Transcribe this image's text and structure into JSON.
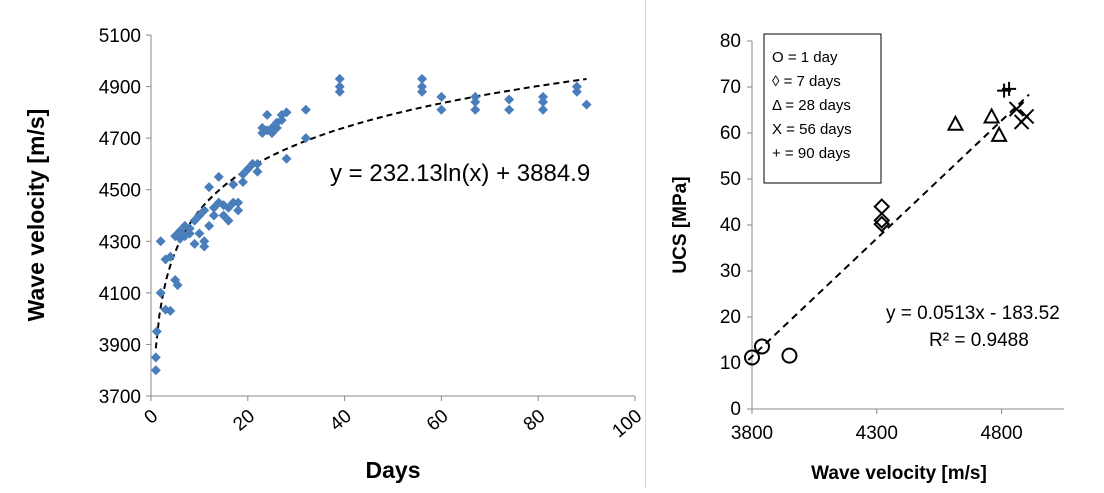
{
  "chart_data": [
    {
      "type": "scatter",
      "xlabel": "Days",
      "ylabel": "Wave velocity [m/s]",
      "xlim": [
        0,
        100
      ],
      "ylim": [
        3700,
        5100
      ],
      "xticks": [
        "0",
        "20",
        "40",
        "60",
        "80",
        "100"
      ],
      "yticks": [
        "3700",
        "3900",
        "4100",
        "4300",
        "4500",
        "4700",
        "4900",
        "5100"
      ],
      "grid": false,
      "marker": "diamond",
      "marker_color": "#4a7ebb",
      "series": [
        {
          "points": [
            [
              1,
              3800
            ],
            [
              1,
              3850
            ],
            [
              1.2,
              3950
            ],
            [
              2,
              4100
            ],
            [
              2,
              4300
            ],
            [
              3,
              4230
            ],
            [
              3,
              4035
            ],
            [
              4,
              4030
            ],
            [
              4,
              4240
            ],
            [
              5,
              4150
            ],
            [
              5,
              4320
            ],
            [
              5.5,
              4130
            ],
            [
              6,
              4310
            ],
            [
              6,
              4340
            ],
            [
              7,
              4360
            ],
            [
              7,
              4320
            ],
            [
              8,
              4330
            ],
            [
              8,
              4350
            ],
            [
              9,
              4380
            ],
            [
              9,
              4290
            ],
            [
              10,
              4400
            ],
            [
              10,
              4330
            ],
            [
              11,
              4300
            ],
            [
              11,
              4280
            ],
            [
              11,
              4420
            ],
            [
              12,
              4360
            ],
            [
              12,
              4510
            ],
            [
              13,
              4400
            ],
            [
              13,
              4430
            ],
            [
              14,
              4450
            ],
            [
              14,
              4550
            ],
            [
              15,
              4400
            ],
            [
              15,
              4440
            ],
            [
              16,
              4380
            ],
            [
              16,
              4430
            ],
            [
              17,
              4450
            ],
            [
              17,
              4520
            ],
            [
              18,
              4420
            ],
            [
              18,
              4450
            ],
            [
              19,
              4530
            ],
            [
              19,
              4560
            ],
            [
              20,
              4580
            ],
            [
              21,
              4600
            ],
            [
              22,
              4570
            ],
            [
              22,
              4600
            ],
            [
              23,
              4720
            ],
            [
              23,
              4740
            ],
            [
              24,
              4730
            ],
            [
              24,
              4790
            ],
            [
              25,
              4720
            ],
            [
              25,
              4740
            ],
            [
              26,
              4740
            ],
            [
              26,
              4760
            ],
            [
              27,
              4770
            ],
            [
              27,
              4790
            ],
            [
              28,
              4800
            ],
            [
              28,
              4620
            ],
            [
              32,
              4810
            ],
            [
              32,
              4700
            ],
            [
              39,
              4880
            ],
            [
              39,
              4900
            ],
            [
              39,
              4930
            ],
            [
              56,
              4880
            ],
            [
              56,
              4900
            ],
            [
              56,
              4930
            ],
            [
              60,
              4810
            ],
            [
              60,
              4860
            ],
            [
              67,
              4810
            ],
            [
              67,
              4840
            ],
            [
              67,
              4860
            ],
            [
              74,
              4810
            ],
            [
              74,
              4850
            ],
            [
              81,
              4810
            ],
            [
              81,
              4840
            ],
            [
              81,
              4860
            ],
            [
              88,
              4880
            ],
            [
              88,
              4900
            ],
            [
              90,
              4830
            ]
          ]
        }
      ],
      "trendline": {
        "kind": "logarithmic",
        "a": 232.13,
        "b": 3884.9,
        "x_range": [
          1,
          90
        ],
        "style": "dashed"
      },
      "annotations": [
        "y = 232.13ln(x) + 3884.9"
      ]
    },
    {
      "type": "scatter",
      "xlabel": "Wave velocity [m/s]",
      "ylabel": "UCS [MPa]",
      "xlim": [
        3800,
        5050
      ],
      "ylim": [
        0,
        80
      ],
      "xticks": [
        "3800",
        "4300",
        "4800"
      ],
      "yticks": [
        "0",
        "10",
        "20",
        "30",
        "40",
        "50",
        "60",
        "70",
        "80"
      ],
      "grid": false,
      "legend": {
        "placement": "top-left",
        "entries": [
          "O = 1 day",
          "◊ = 7 days",
          "Δ = 28 days",
          "X = 56 days",
          "+ = 90 days"
        ]
      },
      "series": [
        {
          "marker": "circle",
          "points": [
            [
              3800,
              11.2
            ],
            [
              3840,
              13.6
            ],
            [
              3950,
              11.6
            ]
          ]
        },
        {
          "marker": "diamond",
          "points": [
            [
              4320,
              44
            ],
            [
              4320,
              41
            ],
            [
              4320,
              40.2
            ]
          ]
        },
        {
          "marker": "triangle",
          "points": [
            [
              4615,
              62
            ],
            [
              4760,
              63.6
            ],
            [
              4790,
              59.6
            ]
          ]
        },
        {
          "marker": "x",
          "points": [
            [
              4860,
              65.2
            ],
            [
              4880,
              62.4
            ],
            [
              4900,
              63.6
            ]
          ]
        },
        {
          "marker": "plus",
          "points": [
            [
              4810,
              69.2
            ],
            [
              4830,
              69.6
            ]
          ]
        }
      ],
      "trendline": {
        "kind": "linear",
        "slope": 0.0513,
        "intercept": -183.52,
        "x_range": [
          3785,
          4910
        ],
        "style": "dashed"
      },
      "annotations": [
        "y = 0.0513x - 183.52",
        "R² = 0.9488"
      ]
    }
  ]
}
